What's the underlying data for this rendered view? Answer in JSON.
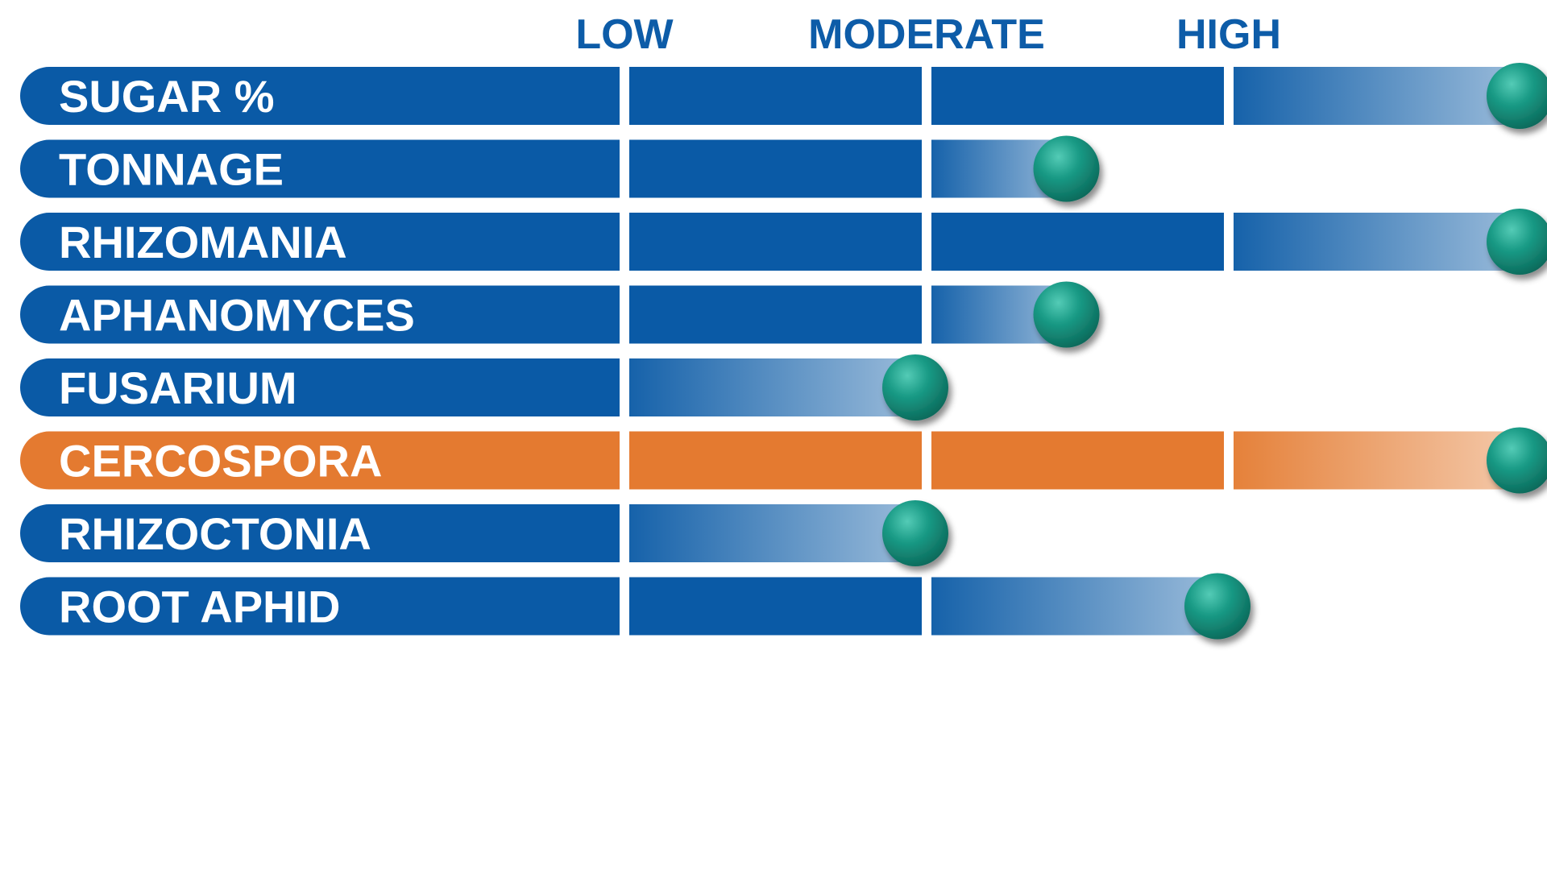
{
  "colors": {
    "primary_blue": "#0a5aa6",
    "accent_orange": "#e47a30",
    "header_blue": "#0d5ca8",
    "marker_teal": "#1a9b86",
    "background": "#ffffff"
  },
  "chart_data": {
    "type": "bar",
    "title": "",
    "xlabel": "",
    "ylabel": "",
    "scale": {
      "min": 0,
      "max": 3,
      "levels": [
        "LOW",
        "MODERATE",
        "HIGH"
      ]
    },
    "categories": [
      "SUGAR %",
      "TONNAGE",
      "RHIZOMANIA",
      "APHANOMYCES",
      "FUSARIUM",
      "CERCOSPORA",
      "RHIZOCTONIA",
      "ROOT APHID"
    ],
    "values": [
      3,
      1.5,
      3,
      1.5,
      1,
      3,
      1,
      2
    ],
    "highlight": [
      "CERCOSPORA"
    ],
    "marker": "teal-ball",
    "grid": false,
    "legend": "none"
  }
}
